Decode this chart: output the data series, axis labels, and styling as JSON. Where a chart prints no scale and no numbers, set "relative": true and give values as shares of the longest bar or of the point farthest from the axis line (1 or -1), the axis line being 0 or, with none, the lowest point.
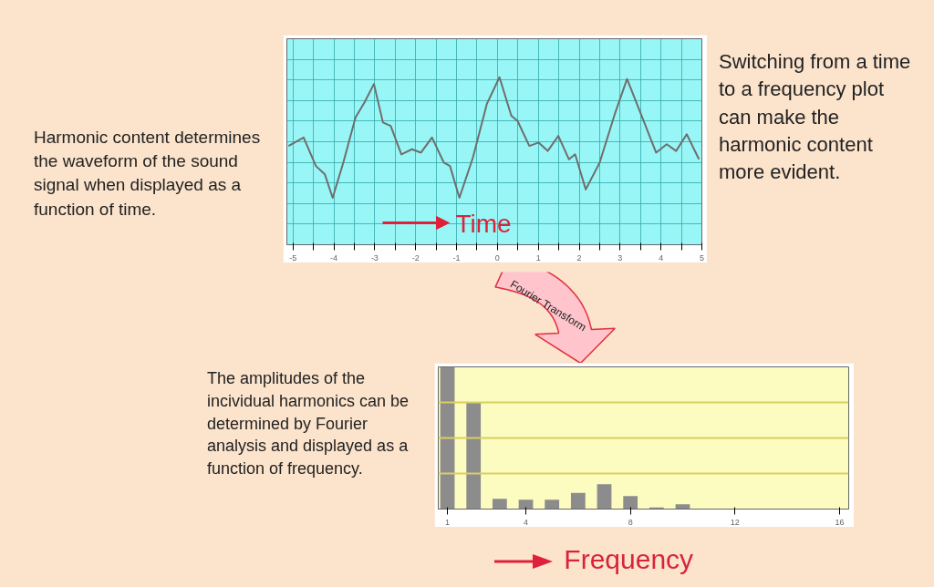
{
  "chart_data": [
    {
      "type": "line",
      "relative": true,
      "xlabel": "Time",
      "color": "#6e6e6e",
      "grid": true,
      "x": [
        -5.11,
        -4.74,
        -4.44,
        -4.22,
        -4.03,
        -3.77,
        -3.47,
        -3.25,
        -3.02,
        -2.8,
        -2.61,
        -2.35,
        -2.09,
        -1.87,
        -1.6,
        -1.31,
        -1.16,
        -0.93,
        -0.6,
        -0.26,
        0.05,
        0.34,
        0.49,
        0.78,
        1.01,
        1.23,
        1.49,
        1.75,
        1.9,
        2.16,
        2.5,
        2.87,
        3.17,
        3.51,
        3.88,
        4.14,
        4.37,
        4.63,
        4.93
      ],
      "values": [
        0.59,
        0.64,
        0.47,
        0.42,
        0.28,
        0.49,
        0.76,
        0.85,
        0.96,
        0.73,
        0.71,
        0.54,
        0.57,
        0.55,
        0.64,
        0.49,
        0.47,
        0.28,
        0.52,
        0.84,
        1.0,
        0.77,
        0.74,
        0.59,
        0.61,
        0.56,
        0.65,
        0.51,
        0.54,
        0.33,
        0.49,
        0.78,
        0.99,
        0.78,
        0.55,
        0.6,
        0.56,
        0.66,
        0.51
      ],
      "xlim": [
        -5.15,
        5
      ],
      "xticks": [
        -5,
        {
          "value": -4.5,
          "label": null
        },
        -4,
        {
          "value": -3.5,
          "label": null
        },
        -3,
        {
          "value": -2.5,
          "label": null
        },
        -2,
        {
          "value": -1.5,
          "label": null
        },
        -1,
        {
          "value": -0.5,
          "label": null
        },
        0,
        {
          "value": 0.5,
          "label": null
        },
        1,
        {
          "value": 1.5,
          "label": null
        },
        2,
        {
          "value": 2.5,
          "label": null
        },
        3,
        {
          "value": 3.5,
          "label": null
        },
        4,
        {
          "value": 4.5,
          "label": null
        },
        5
      ],
      "annotations": [
        "Harmonic content determines the waveform of the sound signal when displayed as a function of time.",
        "Switching from a time to a frequency plot can make the harmonic content more evident."
      ]
    },
    {
      "type": "bar",
      "relative": true,
      "xlabel": "Frequency",
      "color": "#8c8c8c",
      "ref_lines": [
        {
          "axis": "y",
          "value": 0.25,
          "color": "#d8d060"
        },
        {
          "axis": "y",
          "value": 0.5,
          "color": "#d8d060"
        },
        {
          "axis": "y",
          "value": 0.75,
          "color": "#d8d060"
        }
      ],
      "x": [
        1,
        2,
        3,
        4,
        5,
        6,
        7,
        8,
        9,
        10,
        11,
        12,
        13
      ],
      "values": [
        1.0,
        0.75,
        0.072,
        0.065,
        0.065,
        0.113,
        0.174,
        0.091,
        0.011,
        0.033,
        0.0,
        0.0,
        0.004
      ],
      "xlim": [
        0.65,
        16.35
      ],
      "xticks": [
        1,
        4,
        8,
        12,
        16
      ],
      "annotations": [
        "The amplitudes of the incividual harmonics can be determined by Fourier analysis and displayed as a function of frequency.",
        "Fourier Transform"
      ]
    }
  ]
}
